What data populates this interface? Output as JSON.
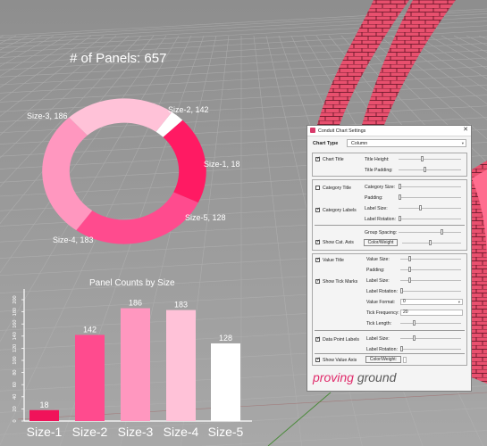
{
  "colors": {
    "grid_bg": "#9a9a9a",
    "text": "#ffffff",
    "accent": "#e02a6a",
    "brand_gray": "#5a5a5a"
  },
  "donut": {
    "title": "# of Panels: 657",
    "slices": [
      {
        "label": "Size-1, 18",
        "value": 18,
        "color": "#ffffff"
      },
      {
        "label": "Size-5, 128",
        "value": 128,
        "color": "#ff1a63"
      },
      {
        "label": "Size-4, 183",
        "value": 183,
        "color": "#ff4b8e"
      },
      {
        "label": "Size-3, 186",
        "value": 186,
        "color": "#ff97bf"
      },
      {
        "label": "Size-2, 142",
        "value": 142,
        "color": "#ffc2d8"
      }
    ]
  },
  "chart_data": {
    "type": "bar",
    "title": "Panel Counts by Size",
    "categories": [
      "Size-1",
      "Size-2",
      "Size-3",
      "Size-4",
      "Size-5"
    ],
    "values": [
      18,
      142,
      186,
      183,
      128
    ],
    "data_labels": [
      "18",
      "142",
      "186",
      "183",
      "128"
    ],
    "colors": [
      "#f0135a",
      "#ff4b8e",
      "#ff97bf",
      "#ffc2d8",
      "#ffffff"
    ],
    "ylim": [
      0,
      200
    ],
    "yticks": [
      "0",
      "20",
      "40",
      "60",
      "80",
      "100",
      "120",
      "140",
      "160",
      "180",
      "200"
    ]
  },
  "dialog": {
    "title": "Conduit Chart Settings",
    "close_glyph": "✕",
    "chart_type": {
      "label": "Chart Type",
      "value": "Column",
      "arrow": "▾"
    },
    "chart_title_group": {
      "check_label": "Chart Title",
      "checked": true,
      "rows": [
        {
          "label": "Title Height:",
          "value": 0.38
        },
        {
          "label": "Title Padding:",
          "value": 0.42
        }
      ]
    },
    "category_group": {
      "title_check": {
        "label": "Category Title",
        "checked": false
      },
      "labels_check": {
        "label": "Category Labels",
        "checked": true
      },
      "axis_check": {
        "label": "Show Cat. Axis",
        "checked": true
      },
      "rows": [
        {
          "label": "Category Size:",
          "value": 0.0
        },
        {
          "label": "Padding:",
          "value": 0.0
        },
        {
          "label": "Label Size:",
          "value": 0.35
        },
        {
          "label": "Label Rotation:",
          "value": 0.0
        },
        {
          "label": "Group Spacing:",
          "value": 0.7
        },
        {
          "label": "Color/Weight:",
          "value": 0.48
        }
      ],
      "color_btn": "Color/Weight"
    },
    "value_group": {
      "title_check": {
        "label": "Value Title",
        "checked": true
      },
      "tick_check": {
        "label": "Show Tick Marks",
        "checked": true
      },
      "dpl_check": {
        "label": "Data Point Labels",
        "checked": true
      },
      "axis_check": {
        "label": "Show Value Axis",
        "checked": true
      },
      "rows": [
        {
          "label": "Value Size:",
          "value": 0.14
        },
        {
          "label": "Padding:",
          "value": 0.14
        },
        {
          "label": "Label Size:",
          "value": 0.14
        },
        {
          "label": "Label Rotation:",
          "value": 0.0
        },
        {
          "label": "Tick Length:",
          "value": 0.22
        },
        {
          "label": "Label Size:",
          "value": 0.22
        },
        {
          "label": "Label Rotation:",
          "value": 0.0
        }
      ],
      "value_format": {
        "label": "Value Format:",
        "value": "0"
      },
      "tick_frequency": {
        "label": "Tick Frequency:",
        "value": "20"
      },
      "color_btn": "Color/Weight:"
    },
    "brand": {
      "part1": "proving ",
      "part2": "ground"
    }
  }
}
